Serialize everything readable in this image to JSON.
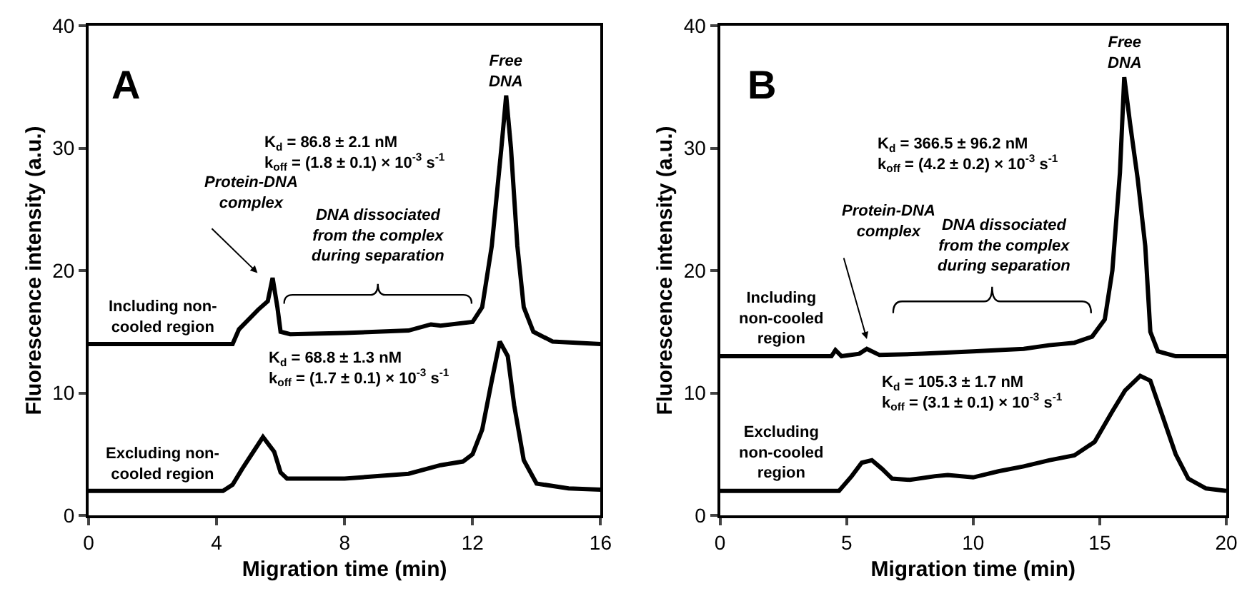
{
  "chart_data": [
    {
      "type": "line",
      "xlabel": "Migration time (min)",
      "ylabel": "Fluorescence intensity (a.u.)",
      "xlim": [
        0,
        16
      ],
      "xticks": [
        0,
        4,
        8,
        12,
        16
      ],
      "ylim": [
        0,
        40
      ],
      "yticks": [
        0,
        10,
        20,
        30,
        40
      ],
      "legend": false,
      "marker": "none",
      "line_style": "solid",
      "series": [
        {
          "name": "Including non-\ncooled region",
          "color": "#000000",
          "x": [
            0,
            4.5,
            4.7,
            5.0,
            5.3,
            5.6,
            5.75,
            5.9,
            6.0,
            6.3,
            8,
            10,
            10.7,
            11,
            12,
            12.3,
            12.6,
            12.9,
            13.05,
            13.2,
            13.4,
            13.6,
            13.9,
            14.5,
            16
          ],
          "values": [
            14,
            14,
            15.2,
            16.0,
            16.8,
            17.5,
            19.4,
            17.0,
            15.0,
            14.8,
            14.9,
            15.1,
            15.6,
            15.5,
            15.8,
            17,
            22,
            30,
            34.3,
            30,
            22,
            17,
            15,
            14.2,
            14
          ]
        },
        {
          "name": "Excluding non-\ncooled region",
          "color": "#000000",
          "x": [
            0,
            4.2,
            4.5,
            4.8,
            5.1,
            5.45,
            5.8,
            6.0,
            6.2,
            8,
            10,
            11,
            11.7,
            12,
            12.3,
            12.6,
            12.85,
            13.1,
            13.3,
            13.6,
            14,
            15,
            16
          ],
          "values": [
            2,
            2,
            2.5,
            3.8,
            5.0,
            6.4,
            5.2,
            3.5,
            3.0,
            3.0,
            3.4,
            4.1,
            4.4,
            5.0,
            7,
            11,
            14.2,
            13,
            9,
            4.5,
            2.6,
            2.2,
            2.1
          ]
        }
      ],
      "annotations": [
        "A",
        "K$_{d}$ = 86.8 ± 2.1 nM\nk$_{off}$ = (1.8 ± 0.1) × 10$^{-3}$ s$^{-1}$",
        "K$_{d}$ = 68.8 ± 1.3 nM\nk$_{off}$ = (1.7 ± 0.1) × 10$^{-3}$ s$^{-1}$",
        {
          "text": "Free\nDNA",
          "x": 13.05,
          "y": 34.3
        },
        "Protein-DNA\ncomplex",
        "DNA dissociated\nfrom the complex\nduring separation"
      ]
    },
    {
      "type": "line",
      "xlabel": "Migration time (min)",
      "ylabel": "Fluorescence intensity (a.u.)",
      "xlim": [
        0,
        20
      ],
      "xticks": [
        0,
        5,
        10,
        15,
        20
      ],
      "ylim": [
        0,
        40
      ],
      "yticks": [
        0,
        10,
        20,
        30,
        40
      ],
      "legend": false,
      "marker": "none",
      "line_style": "solid",
      "series": [
        {
          "name": "Including\nnon-cooled\nregion",
          "color": "#000000",
          "x": [
            0,
            4.4,
            4.56,
            4.8,
            5.5,
            5.8,
            6.3,
            8,
            10,
            12,
            13,
            14,
            14.7,
            15.2,
            15.5,
            15.8,
            15.97,
            16.2,
            16.5,
            16.8,
            17.0,
            17.3,
            18,
            20
          ],
          "values": [
            13,
            13,
            13.5,
            13,
            13.2,
            13.6,
            13.1,
            13.2,
            13.4,
            13.6,
            13.9,
            14.1,
            14.6,
            16,
            20,
            28,
            35.8,
            32,
            27.5,
            22,
            15,
            13.4,
            13,
            13
          ]
        },
        {
          "name": "Excluding\nnon-cooled\nregion",
          "color": "#000000",
          "x": [
            0,
            4.7,
            5.2,
            5.6,
            6.0,
            6.4,
            6.8,
            7.5,
            8.5,
            9,
            10,
            11,
            12,
            13,
            14,
            14.8,
            15.5,
            16,
            16.6,
            17,
            17.5,
            18,
            18.5,
            19.2,
            20
          ],
          "values": [
            2,
            2,
            3.2,
            4.3,
            4.5,
            3.8,
            3,
            2.9,
            3.2,
            3.3,
            3.1,
            3.6,
            4.0,
            4.5,
            4.9,
            6,
            8.5,
            10.2,
            11.4,
            11,
            8,
            5,
            3,
            2.2,
            2
          ]
        }
      ],
      "annotations": [
        "B",
        "K$_{d}$ = 366.5 ± 96.2 nM\nk$_{off}$ = (4.2 ± 0.2) × 10$^{-3}$ s$^{-1}$",
        "K$_{d}$ = 105.3 ± 1.7 nM\nk$_{off}$ = (3.1 ± 0.1) × 10$^{-3}$ s$^{-1}$",
        {
          "text": "Free\nDNA",
          "x": 15.97,
          "y": 35.8
        },
        "Protein-DNA\ncomplex",
        "DNA dissociated\nfrom the complex\nduring separation"
      ]
    }
  ]
}
